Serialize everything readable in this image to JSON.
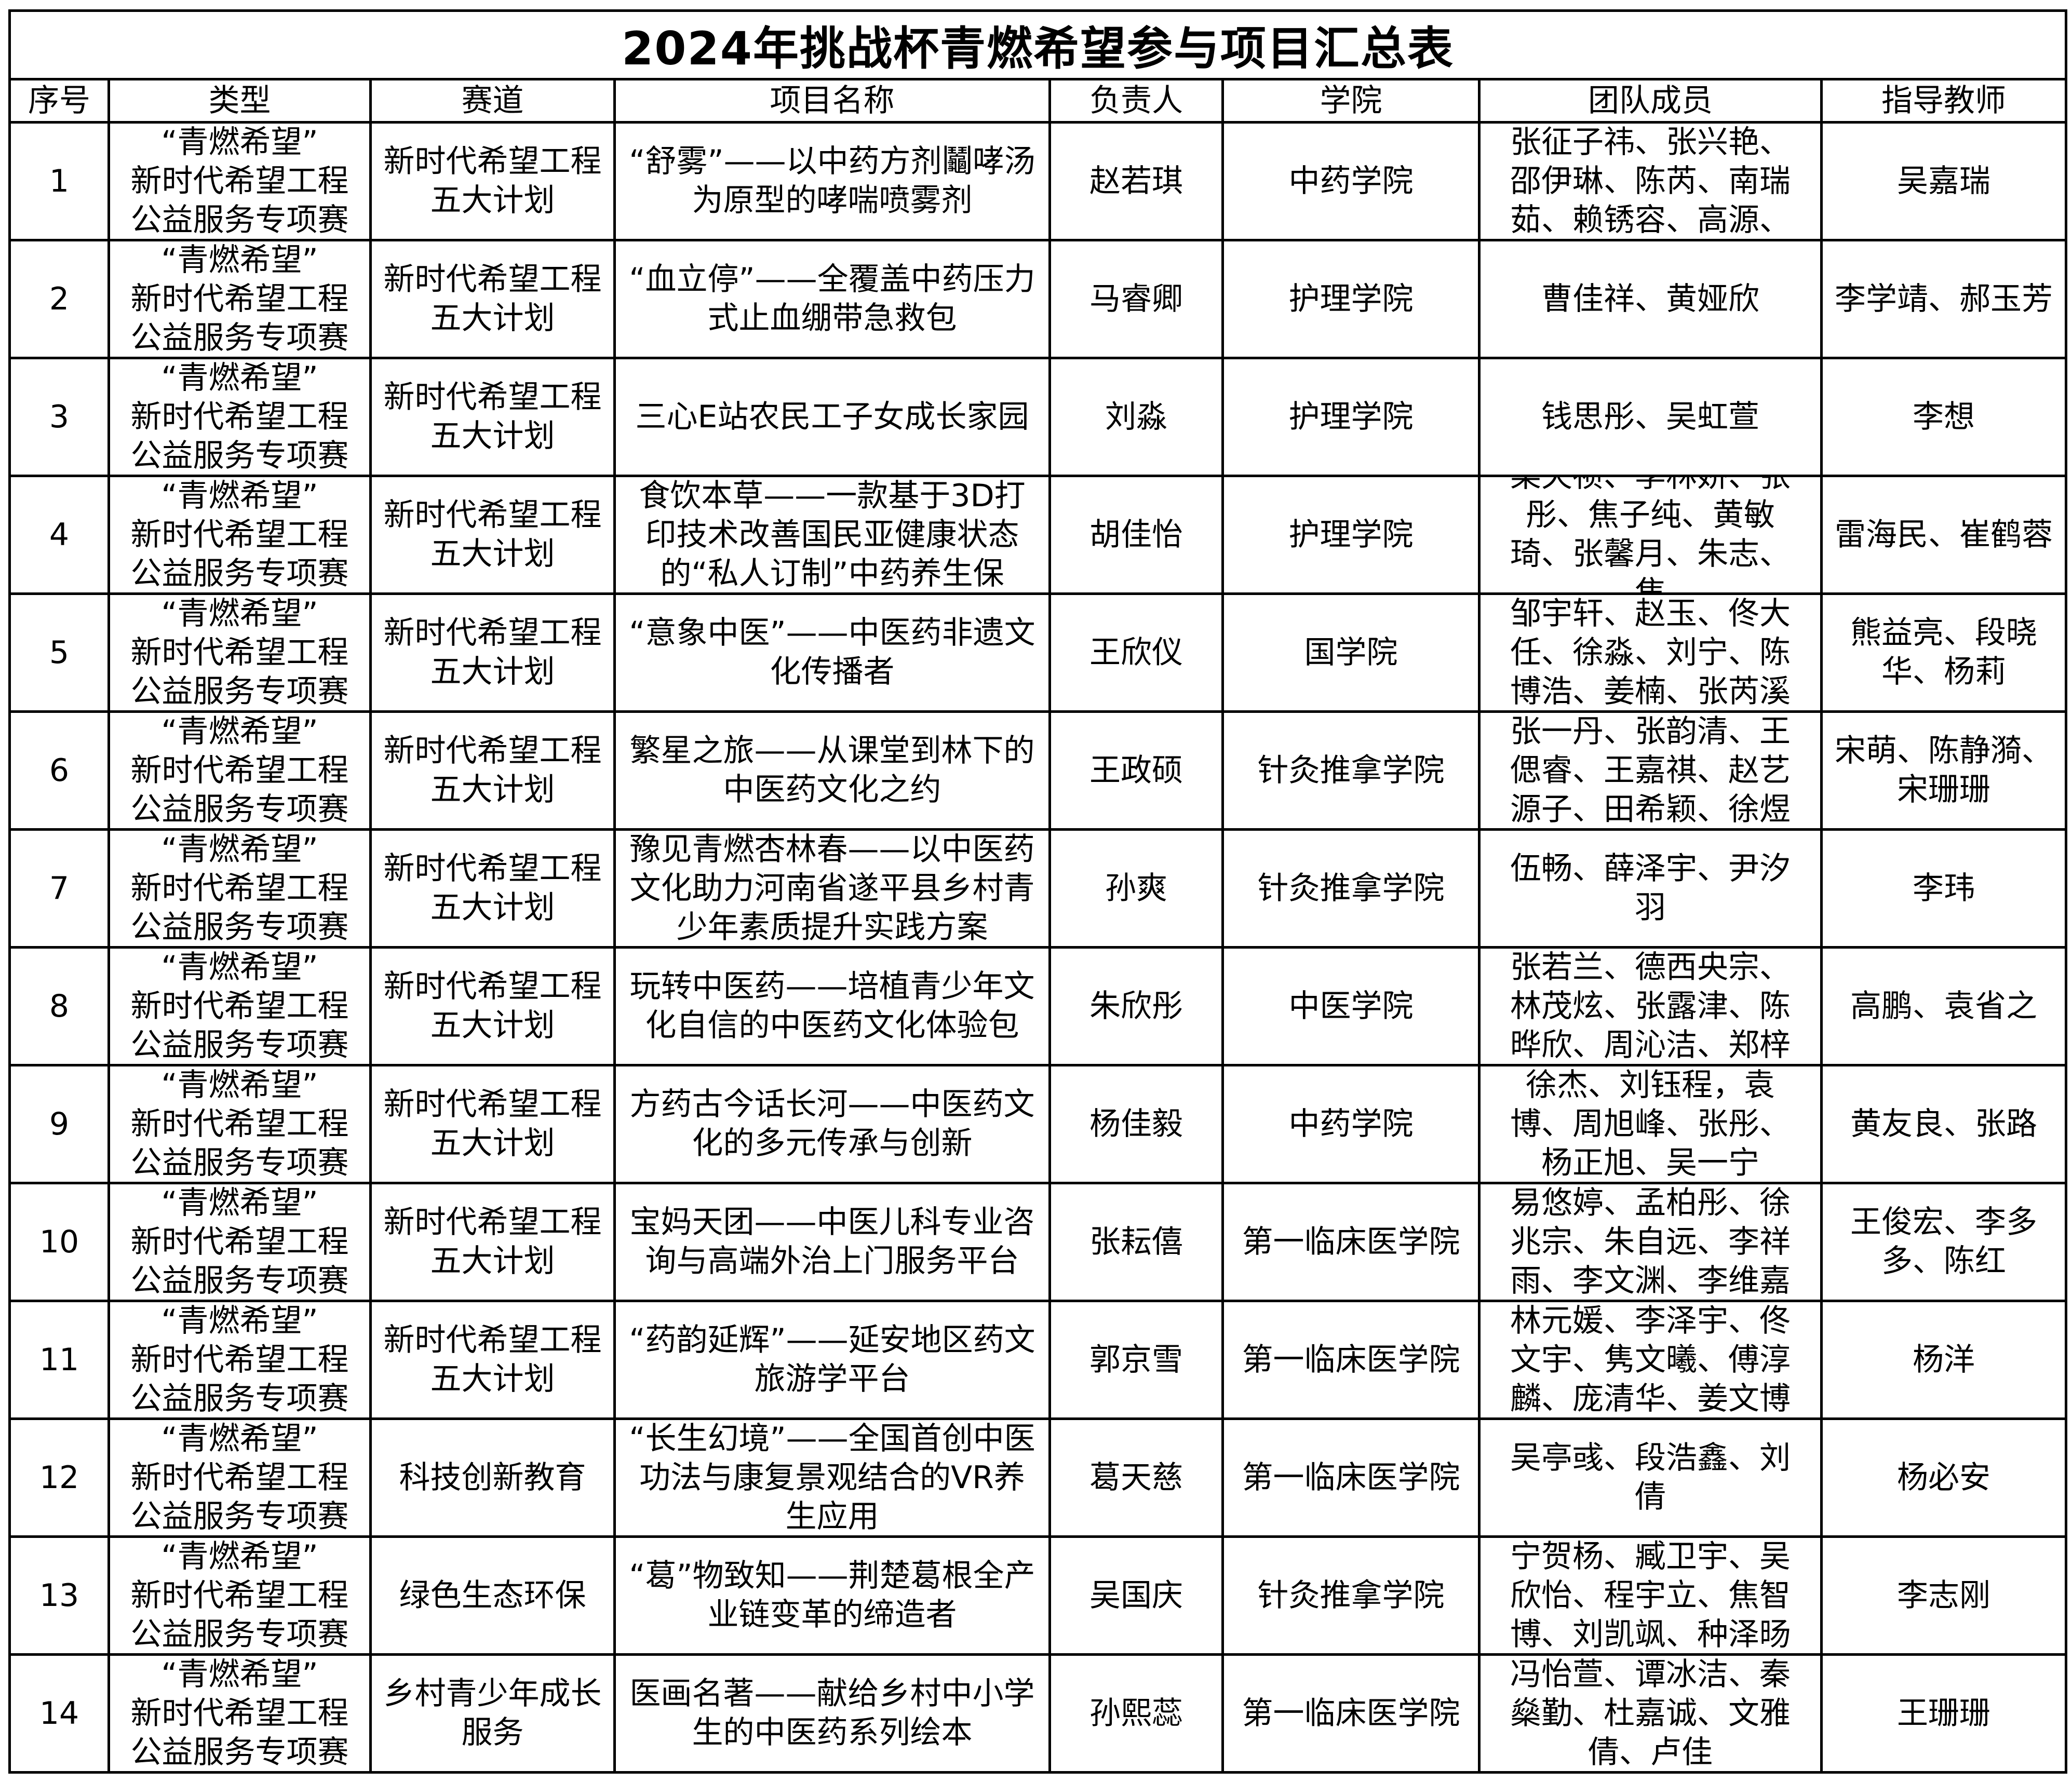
{
  "title": "2024年挑战杯青燃希望参与项目汇总表",
  "headers": [
    "序号",
    "类型",
    "赛道",
    "项目名称",
    "负责人",
    "学院",
    "团队成员",
    "指导教师"
  ],
  "rows": [
    {
      "no": "1",
      "type": "“青燃希望”\n新时代希望工程\n公益服务专项赛",
      "track": "新时代希望工程五大计划",
      "project": "“舒雾”——以中药方剂鬮哮汤为原型的哮喘喷雾剂",
      "leader": "赵若琪",
      "college": "中药学院",
      "members": "张征子祎、张兴艳、邵伊琳、陈芮、南瑞茹、赖锈容、高源、",
      "advisor": "吴嘉瑞"
    },
    {
      "no": "2",
      "type": "“青燃希望”\n新时代希望工程\n公益服务专项赛",
      "track": "新时代希望工程五大计划",
      "project": "“血立停”——全覆盖中药压力式止血绷带急救包",
      "leader": "马睿卿",
      "college": "护理学院",
      "members": "曹佳祥、黄娅欣",
      "advisor": "李学靖、郝玉芳"
    },
    {
      "no": "3",
      "type": "“青燃希望”\n新时代希望工程\n公益服务专项赛",
      "track": "新时代希望工程五大计划",
      "project": "三心E站农民工子女成长家园",
      "leader": "刘淼",
      "college": "护理学院",
      "members": "钱思彤、吴虹萱",
      "advisor": "李想"
    },
    {
      "no": "4",
      "type": "“青燃希望”\n新时代希望工程\n公益服务专项赛",
      "track": "新时代希望工程五大计划",
      "project": "食饮本草——一款基于3D打印技术改善国民亚健康状态的“私人订制”中药养生保",
      "leader": "胡佳怡",
      "college": "护理学院",
      "members": "梁天祯、李林娇、张彤、焦子纯、黄敏琦、张馨月、朱志、焦",
      "advisor": "雷海民、崔鹤蓉"
    },
    {
      "no": "5",
      "type": "“青燃希望”\n新时代希望工程\n公益服务专项赛",
      "track": "新时代希望工程五大计划",
      "project": "“意象中医”——中医药非遗文化传播者",
      "leader": "王欣仪",
      "college": "国学院",
      "members": "邹宇轩、赵玉、佟大任、徐淼、刘宁、陈博浩、姜楠、张芮溪",
      "advisor": "熊益亮、段晓华、杨莉"
    },
    {
      "no": "6",
      "type": "“青燃希望”\n新时代希望工程\n公益服务专项赛",
      "track": "新时代希望工程五大计划",
      "project": "繁星之旅——从课堂到林下的中医药文化之约",
      "leader": "王政硕",
      "college": "针灸推拿学院",
      "members": "张一丹、张韵清、王偲睿、王嘉祺、赵艺源子、田希颖、徐煜",
      "advisor": "宋萌、陈静漪、宋珊珊"
    },
    {
      "no": "7",
      "type": "“青燃希望”\n新时代希望工程\n公益服务专项赛",
      "track": "新时代希望工程五大计划",
      "project": "豫见青燃杏林春——以中医药文化助力河南省遂平县乡村青少年素质提升实践方案",
      "leader": "孙爽",
      "college": "针灸推拿学院",
      "members": "伍畅、薛泽宇、尹汐羽",
      "advisor": "李玮"
    },
    {
      "no": "8",
      "type": "“青燃希望”\n新时代希望工程\n公益服务专项赛",
      "track": "新时代希望工程五大计划",
      "project": "玩转中医药——培植青少年文化自信的中医药文化体验包",
      "leader": "朱欣彤",
      "college": "中医学院",
      "members": "张若兰、德西央宗、林茂炫、张露津、陈晔欣、周沁洁、郑梓",
      "advisor": "高鹏、袁省之"
    },
    {
      "no": "9",
      "type": "“青燃希望”\n新时代希望工程\n公益服务专项赛",
      "track": "新时代希望工程五大计划",
      "project": "方药古今话长河——中医药文化的多元传承与创新",
      "leader": "杨佳毅",
      "college": "中药学院",
      "members": "徐杰、刘钰程，袁博、周旭峰、张彤、杨正旭、吴一宁",
      "advisor": "黄友良、张路"
    },
    {
      "no": "10",
      "type": "“青燃希望”\n新时代希望工程\n公益服务专项赛",
      "track": "新时代希望工程五大计划",
      "project": "宝妈天团——中医儿科专业咨询与高端外治上门服务平台",
      "leader": "张耘僖",
      "college": "第一临床医学院",
      "members": "易悠婷、孟柏彤、徐兆宗、朱自远、李祥雨、李文渊、李维嘉",
      "advisor": "王俊宏、李多多、陈红"
    },
    {
      "no": "11",
      "type": "“青燃希望”\n新时代希望工程\n公益服务专项赛",
      "track": "新时代希望工程五大计划",
      "project": "“药韵延辉”——延安地区药文旅游学平台",
      "leader": "郭京雪",
      "college": "第一临床医学院",
      "members": "林元媛、李泽宇、佟文宇、隽文曦、傅淳麟、庞清华、姜文博",
      "advisor": "杨洋"
    },
    {
      "no": "12",
      "type": "“青燃希望”\n新时代希望工程\n公益服务专项赛",
      "track": "科技创新教育",
      "project": "“长生幻境”——全国首创中医功法与康复景观结合的VR养生应用",
      "leader": "葛天慈",
      "college": "第一临床医学院",
      "members": "吴亭彧、段浩鑫、刘倩",
      "advisor": "杨必安"
    },
    {
      "no": "13",
      "type": "“青燃希望”\n新时代希望工程\n公益服务专项赛",
      "track": "绿色生态环保",
      "project": "“葛”物致知——荆楚葛根全产业链变革的缔造者",
      "leader": "吴国庆",
      "college": "针灸推拿学院",
      "members": "宁贺杨、臧卫宇、吴欣怡、程宇立、焦智博、刘凯飒、种泽旸",
      "advisor": "李志刚"
    },
    {
      "no": "14",
      "type": "“青燃希望”\n新时代希望工程\n公益服务专项赛",
      "track": "乡村青少年成长服务",
      "project": "医画名著——献给乡村中小学生的中医药系列绘本",
      "leader": "孙熙蕊",
      "college": "第一临床医学院",
      "members": "冯怡萱、谭冰洁、秦燊勤、杜嘉诚、文雅倩、卢佳",
      "advisor": "王珊珊"
    }
  ]
}
